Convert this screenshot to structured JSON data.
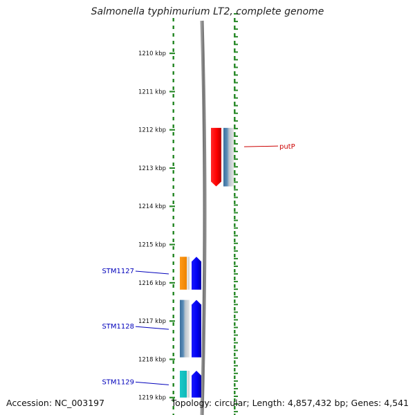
{
  "title": "Salmonella typhimurium LT2, complete genome",
  "footer": {
    "accession": "Accession: NC_003197",
    "summary": "Topology: circular; Length: 4,857,432 bp; Genes: 4,541"
  },
  "colors": {
    "backbone": "#7a7a7a",
    "ruler": "#2a8a2a",
    "label_red": "#cc0000",
    "label_blue": "#0000bb"
  },
  "ruler": {
    "unit": "kbp",
    "ticks": [
      1210,
      1211,
      1212,
      1213,
      1214,
      1215,
      1216,
      1217,
      1218,
      1219
    ]
  },
  "features": [
    {
      "name": "putP",
      "strand": "-",
      "start_kbp": 1211.95,
      "end_kbp": 1213.48,
      "color": "red",
      "labeled": true
    },
    {
      "name": "",
      "strand": "-",
      "start_kbp": 1211.95,
      "end_kbp": 1213.48,
      "color": "steelblue-gradient",
      "labeled": false
    },
    {
      "name": "",
      "strand": "+",
      "start_kbp": 1215.32,
      "end_kbp": 1216.18,
      "color": "orange",
      "labeled": false
    },
    {
      "name": "STM1127",
      "strand": "+",
      "start_kbp": 1215.32,
      "end_kbp": 1216.18,
      "color": "blue",
      "labeled": true
    },
    {
      "name": "",
      "strand": "+",
      "start_kbp": 1216.45,
      "end_kbp": 1217.95,
      "color": "steelblue-gradient",
      "labeled": false
    },
    {
      "name": "STM1128",
      "strand": "+",
      "start_kbp": 1216.45,
      "end_kbp": 1217.95,
      "color": "blue",
      "labeled": true
    },
    {
      "name": "",
      "strand": "+",
      "start_kbp": 1218.3,
      "end_kbp": 1219.0,
      "color": "cyan",
      "labeled": false
    },
    {
      "name": "STM1129",
      "strand": "+",
      "start_kbp": 1218.3,
      "end_kbp": 1219.0,
      "color": "blue",
      "labeled": true
    }
  ]
}
